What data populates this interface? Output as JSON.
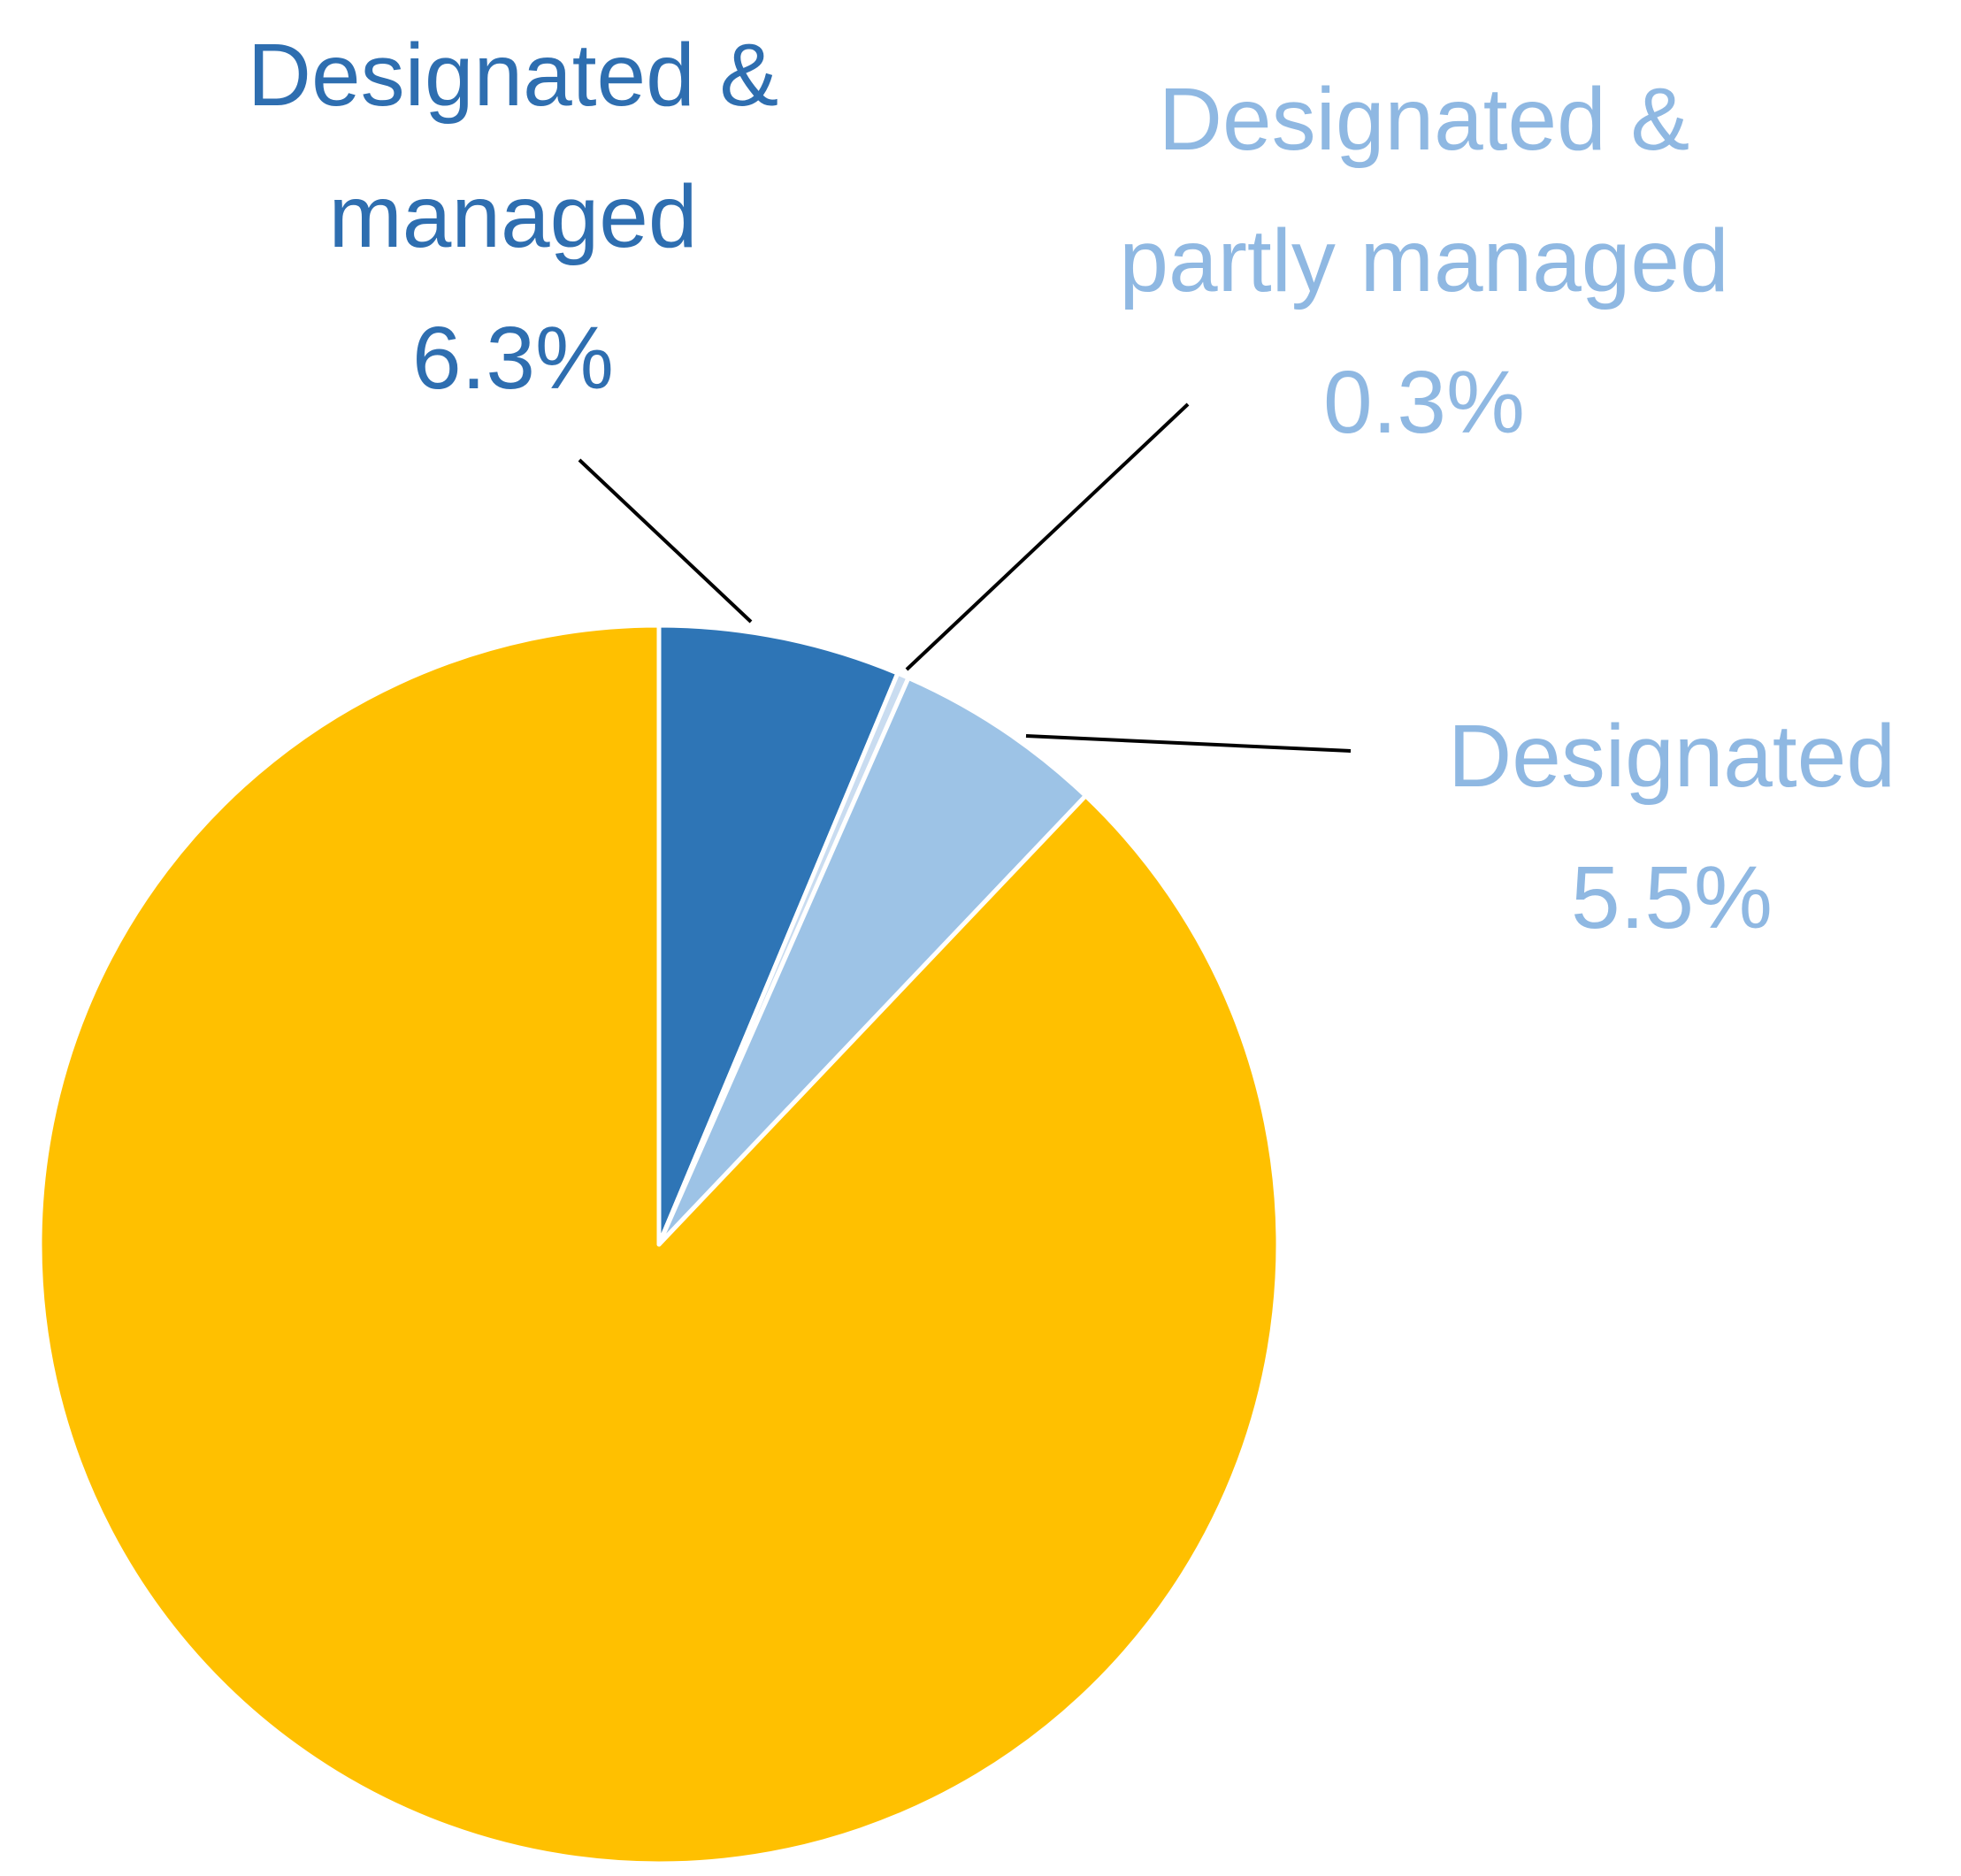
{
  "chart_data": {
    "type": "pie",
    "categories": [
      "Designated & managed",
      "Designated & partly managed",
      "Designated",
      null
    ],
    "values": [
      6.3,
      0.3,
      5.5,
      87.9
    ],
    "value_labels": [
      "6.3%",
      "0.3%",
      "5.5%",
      null
    ],
    "colors": [
      "#2e75b6",
      "#c9dcf0",
      "#9dc3e6",
      "#ffc000"
    ],
    "label_colors": [
      "#2e6eb0",
      "#8fb8e2",
      "#8fb8e2",
      null
    ]
  }
}
